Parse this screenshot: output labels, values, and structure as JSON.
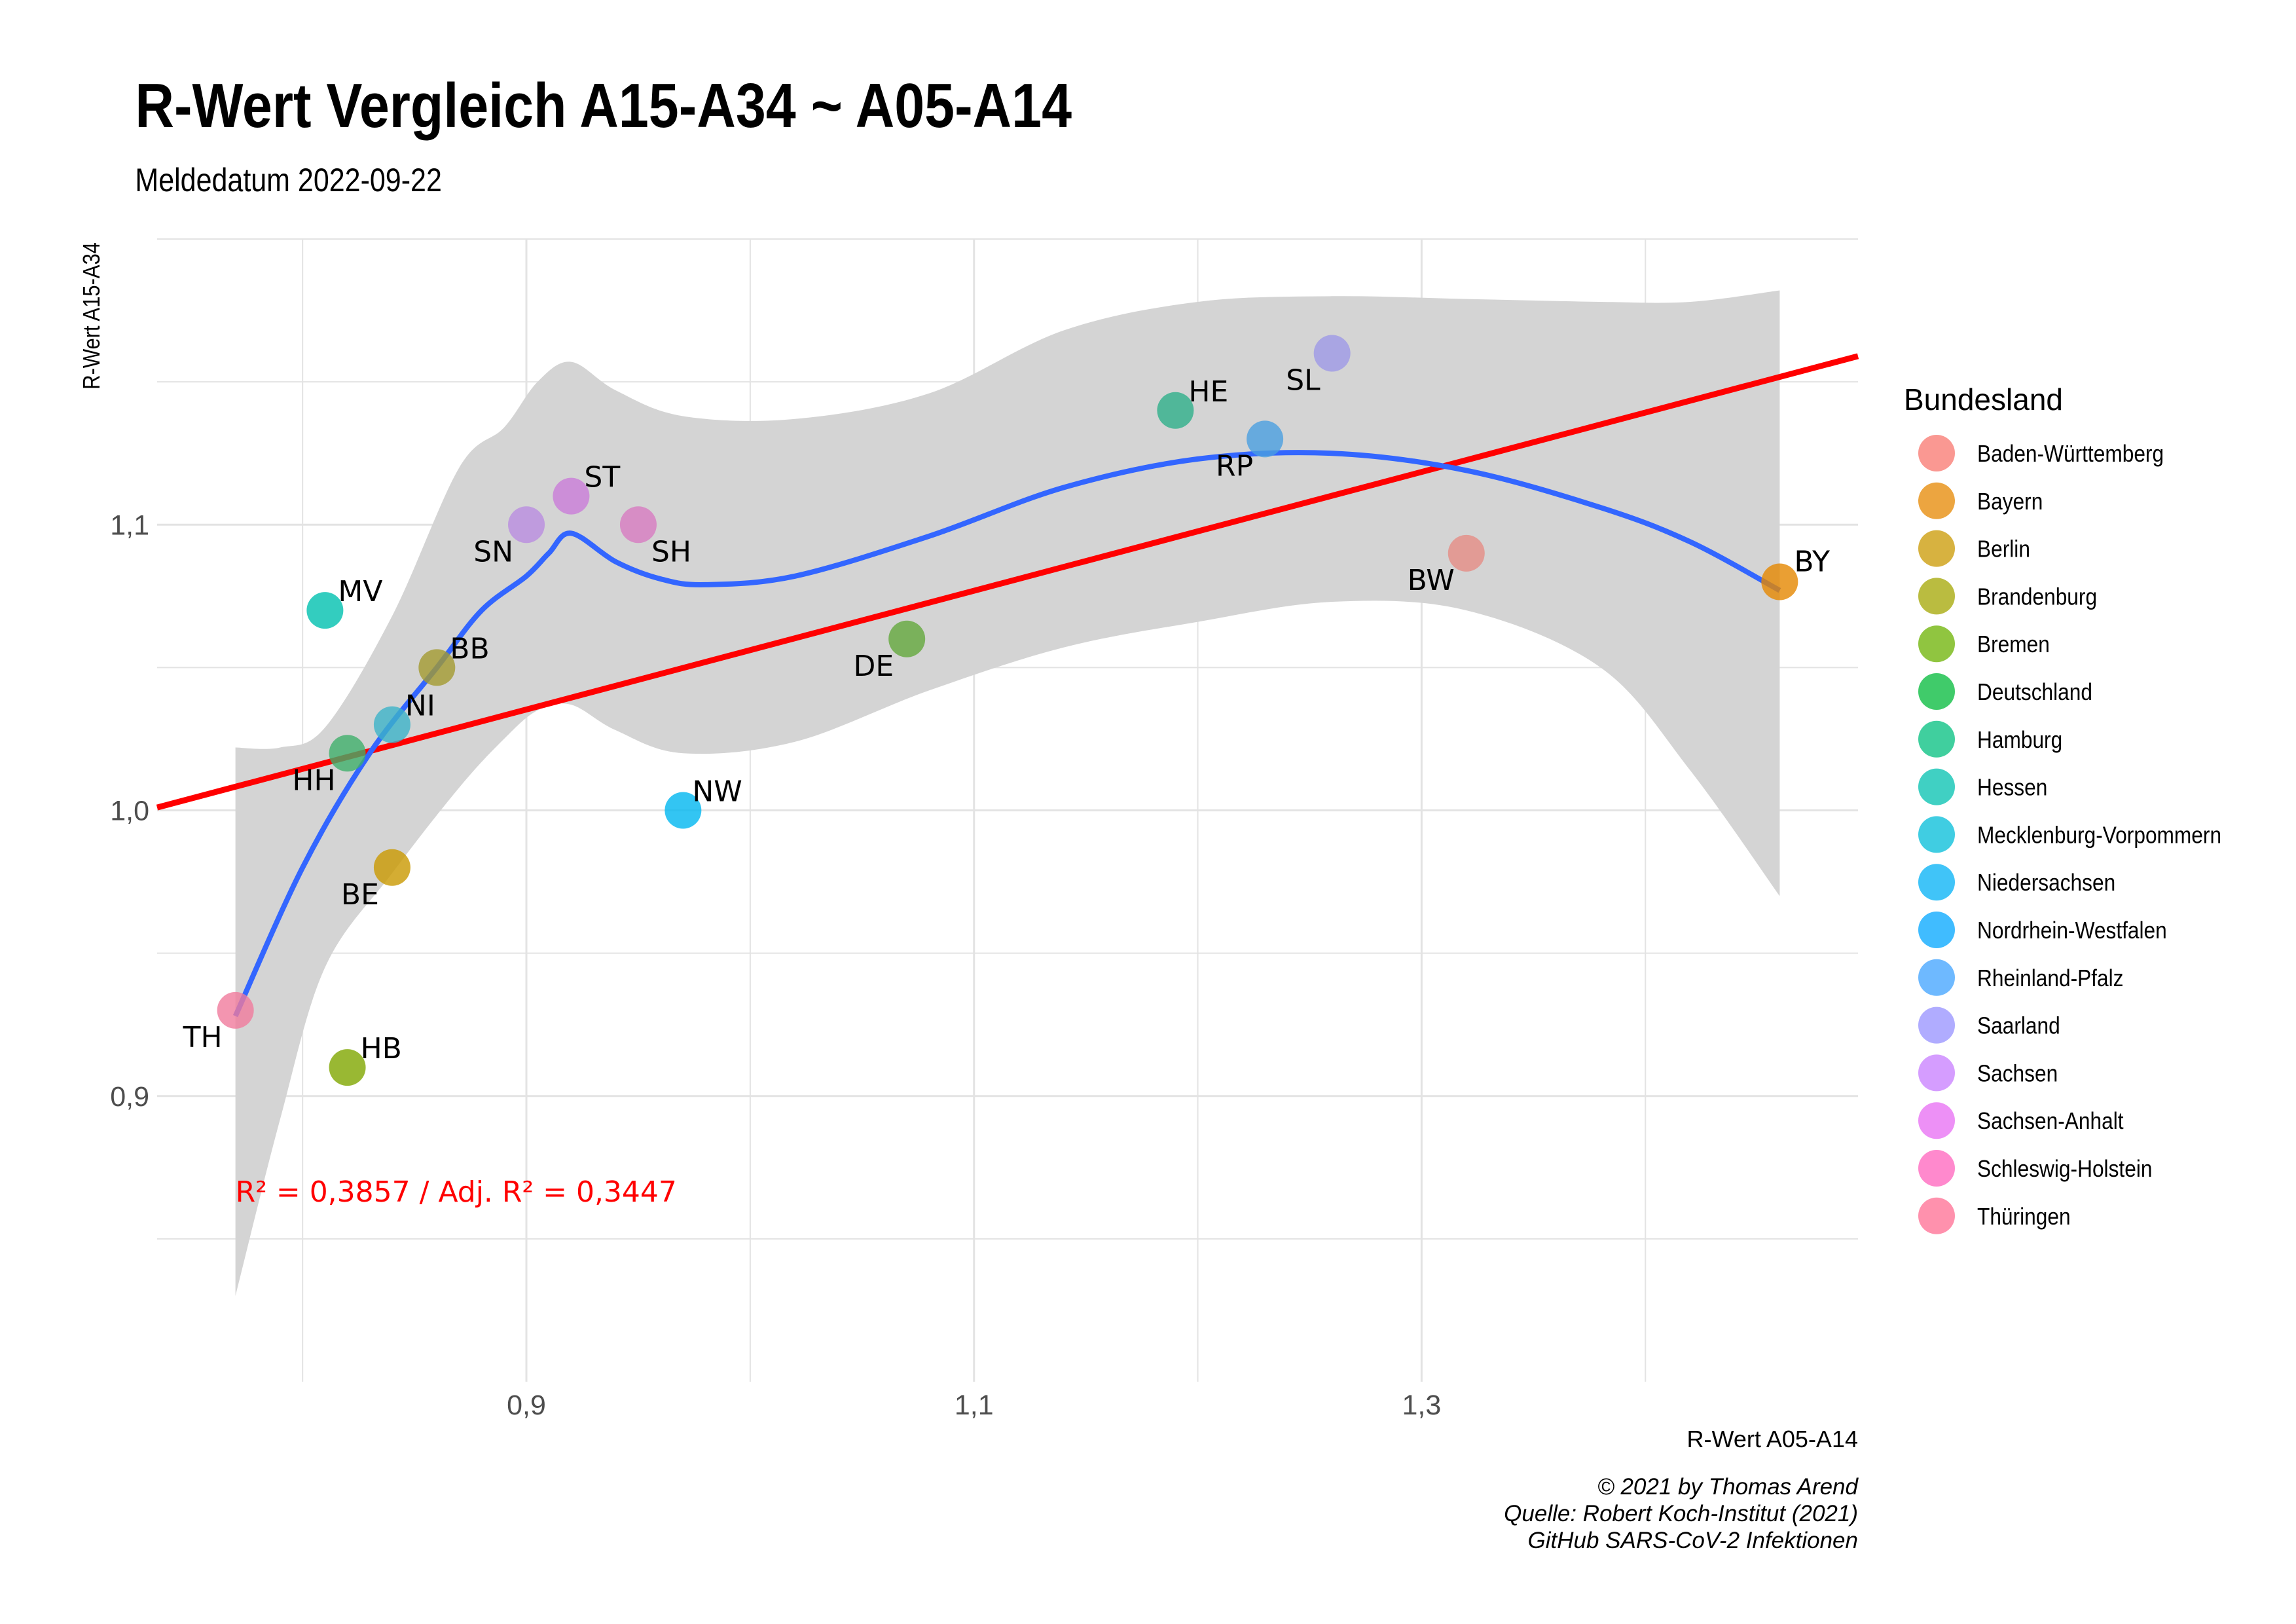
{
  "chart_data": {
    "type": "scatter",
    "title": "R-Wert Vergleich A15-A34 ~ A05-A14",
    "subtitle": "Meldedatum 2022-09-22",
    "xlabel": "R-Wert A05-A14",
    "ylabel": "R-Wert A15-A34",
    "xlim": [
      0.735,
      1.495
    ],
    "ylim": [
      0.8,
      1.2
    ],
    "x_ticks": [
      0.9,
      1.1,
      1.3
    ],
    "x_tick_labels": [
      "0,9",
      "1,1",
      "1,3"
    ],
    "y_ticks": [
      0.9,
      1.0,
      1.1
    ],
    "y_tick_labels": [
      "0,9",
      "1,0",
      "1,1"
    ],
    "grid": true,
    "legend_title": "Bundesland",
    "legend_position": "right",
    "legend": [
      {
        "name": "Baden-Württemberg",
        "color": "#F8766D"
      },
      {
        "name": "Bayern",
        "color": "#E58700"
      },
      {
        "name": "Berlin",
        "color": "#C99800"
      },
      {
        "name": "Brandenburg",
        "color": "#A3A500"
      },
      {
        "name": "Bremen",
        "color": "#6BB100"
      },
      {
        "name": "Deutschland",
        "color": "#00BA38"
      },
      {
        "name": "Hamburg",
        "color": "#00BF7D"
      },
      {
        "name": "Hessen",
        "color": "#00C0AF"
      },
      {
        "name": "Mecklenburg-Vorpommern",
        "color": "#00BCD8"
      },
      {
        "name": "Niedersachsen",
        "color": "#00B0F6"
      },
      {
        "name": "Nordrhein-Westfalen",
        "color": "#00A5FF"
      },
      {
        "name": "Rheinland-Pfalz",
        "color": "#3DA1FF"
      },
      {
        "name": "Saarland",
        "color": "#9590FF"
      },
      {
        "name": "Sachsen",
        "color": "#C77CFF"
      },
      {
        "name": "Sachsen-Anhalt",
        "color": "#E76BF3"
      },
      {
        "name": "Schleswig-Holstein",
        "color": "#FF62BC"
      },
      {
        "name": "Thüringen",
        "color": "#FF6C91"
      }
    ],
    "points": [
      {
        "label": "BW",
        "name": "Baden-Württemberg",
        "x": 1.32,
        "y": 1.09,
        "color": "#E58C84"
      },
      {
        "label": "BY",
        "name": "Bayern",
        "x": 1.46,
        "y": 1.08,
        "color": "#E58700"
      },
      {
        "label": "BE",
        "name": "Berlin",
        "x": 0.84,
        "y": 0.98,
        "color": "#C99800"
      },
      {
        "label": "BB",
        "name": "Brandenburg",
        "x": 0.86,
        "y": 1.05,
        "color": "#A39A30"
      },
      {
        "label": "HB",
        "name": "Bremen",
        "x": 0.82,
        "y": 0.91,
        "color": "#7FA600"
      },
      {
        "label": "DE",
        "name": "Deutschland",
        "x": 1.07,
        "y": 1.06,
        "color": "#63A83C"
      },
      {
        "label": "HH",
        "name": "Hamburg",
        "x": 0.82,
        "y": 1.02,
        "color": "#3FAF6A"
      },
      {
        "label": "HE",
        "name": "Hessen",
        "x": 1.19,
        "y": 1.14,
        "color": "#2EAF8A"
      },
      {
        "label": "MV",
        "name": "Mecklenburg-Vorpommern",
        "x": 0.81,
        "y": 1.07,
        "color": "#00C0AF"
      },
      {
        "label": "NI",
        "name": "Niedersachsen",
        "x": 0.84,
        "y": 1.03,
        "color": "#3CB3C8"
      },
      {
        "label": "NW",
        "name": "Nordrhein-Westfalen",
        "x": 0.97,
        "y": 1.0,
        "color": "#00B6F0"
      },
      {
        "label": "RP",
        "name": "Rheinland-Pfalz",
        "x": 1.23,
        "y": 1.13,
        "color": "#4A9FE0"
      },
      {
        "label": "SL",
        "name": "Saarland",
        "x": 1.26,
        "y": 1.16,
        "color": "#9E98E6"
      },
      {
        "label": "SN",
        "name": "Sachsen",
        "x": 0.9,
        "y": 1.1,
        "color": "#B98CE0"
      },
      {
        "label": "ST",
        "name": "Sachsen-Anhalt",
        "x": 0.92,
        "y": 1.11,
        "color": "#C97CD8"
      },
      {
        "label": "SH",
        "name": "Schleswig-Holstein",
        "x": 0.95,
        "y": 1.1,
        "color": "#D77AC0"
      },
      {
        "label": "TH",
        "name": "Thüringen",
        "x": 0.77,
        "y": 0.93,
        "color": "#F07A9C"
      }
    ],
    "regression_line": {
      "color": "#FF0000",
      "x": [
        0.735,
        1.495
      ],
      "y": [
        1.001,
        1.159
      ]
    },
    "smooth_curve": {
      "color": "#3366FF",
      "points": [
        [
          0.77,
          0.928
        ],
        [
          0.8,
          0.98
        ],
        [
          0.83,
          1.02
        ],
        [
          0.86,
          1.05
        ],
        [
          0.88,
          1.07
        ],
        [
          0.9,
          1.082
        ],
        [
          0.91,
          1.09
        ],
        [
          0.92,
          1.097
        ],
        [
          0.94,
          1.087
        ],
        [
          0.96,
          1.081
        ],
        [
          0.98,
          1.079
        ],
        [
          1.02,
          1.082
        ],
        [
          1.08,
          1.096
        ],
        [
          1.14,
          1.113
        ],
        [
          1.2,
          1.123
        ],
        [
          1.26,
          1.125
        ],
        [
          1.32,
          1.119
        ],
        [
          1.38,
          1.106
        ],
        [
          1.42,
          1.094
        ],
        [
          1.46,
          1.077
        ]
      ]
    },
    "confidence_band": {
      "color": "#D4D4D4",
      "upper": [
        [
          0.77,
          1.022
        ],
        [
          0.79,
          1.022
        ],
        [
          0.81,
          1.029
        ],
        [
          0.84,
          1.068
        ],
        [
          0.87,
          1.12
        ],
        [
          0.89,
          1.134
        ],
        [
          0.905,
          1.15
        ],
        [
          0.92,
          1.157
        ],
        [
          0.94,
          1.147
        ],
        [
          0.97,
          1.138
        ],
        [
          1.02,
          1.137
        ],
        [
          1.08,
          1.146
        ],
        [
          1.14,
          1.168
        ],
        [
          1.2,
          1.178
        ],
        [
          1.26,
          1.18
        ],
        [
          1.32,
          1.179
        ],
        [
          1.38,
          1.178
        ],
        [
          1.42,
          1.178
        ],
        [
          1.46,
          1.182
        ]
      ],
      "lower": [
        [
          0.77,
          0.83
        ],
        [
          0.79,
          0.892
        ],
        [
          0.81,
          0.945
        ],
        [
          0.84,
          0.978
        ],
        [
          0.87,
          1.008
        ],
        [
          0.89,
          1.025
        ],
        [
          0.905,
          1.035
        ],
        [
          0.92,
          1.037
        ],
        [
          0.94,
          1.028
        ],
        [
          0.97,
          1.02
        ],
        [
          1.02,
          1.024
        ],
        [
          1.08,
          1.042
        ],
        [
          1.14,
          1.057
        ],
        [
          1.2,
          1.066
        ],
        [
          1.26,
          1.073
        ],
        [
          1.32,
          1.07
        ],
        [
          1.38,
          1.05
        ],
        [
          1.42,
          1.014
        ],
        [
          1.46,
          0.97
        ]
      ]
    },
    "annotation": {
      "text": "R² = 0,3857 / Adj. R² =  0,3447",
      "color": "#FF0000",
      "x": 0.77,
      "y": 0.863
    }
  },
  "caption": {
    "line1": "© 2021 by Thomas Arend",
    "line2": "Quelle: Robert Koch-Institut (2021)",
    "line3": "GitHub SARS-CoV-2 Infektionen"
  }
}
